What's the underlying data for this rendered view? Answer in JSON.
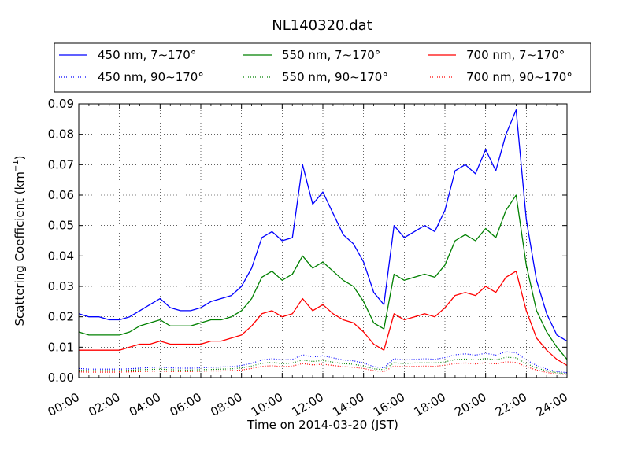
{
  "chart_data": {
    "type": "line",
    "title": "NL140320.dat",
    "xlabel": "Time on 2014-03-20 (JST)",
    "ylabel_main": "Scattering Coefficient (km",
    "ylabel_sup": "−1",
    "ylabel_tail": ")",
    "xlim_hours": [
      0,
      24
    ],
    "ylim": [
      0,
      0.09
    ],
    "grid": true,
    "legend_placement": "top, above axes, 3 columns",
    "xticks": [
      {
        "hour": 0,
        "label": "00:00"
      },
      {
        "hour": 2,
        "label": "02:00"
      },
      {
        "hour": 4,
        "label": "04:00"
      },
      {
        "hour": 6,
        "label": "06:00"
      },
      {
        "hour": 8,
        "label": "08:00"
      },
      {
        "hour": 10,
        "label": "10:00"
      },
      {
        "hour": 12,
        "label": "12:00"
      },
      {
        "hour": 14,
        "label": "14:00"
      },
      {
        "hour": 16,
        "label": "16:00"
      },
      {
        "hour": 18,
        "label": "18:00"
      },
      {
        "hour": 20,
        "label": "20:00"
      },
      {
        "hour": 22,
        "label": "22:00"
      },
      {
        "hour": 24,
        "label": "24:00"
      }
    ],
    "yticks": [
      {
        "value": 0.0,
        "label": "0.00"
      },
      {
        "value": 0.01,
        "label": "0.01"
      },
      {
        "value": 0.02,
        "label": "0.02"
      },
      {
        "value": 0.03,
        "label": "0.03"
      },
      {
        "value": 0.04,
        "label": "0.04"
      },
      {
        "value": 0.05,
        "label": "0.05"
      },
      {
        "value": 0.06,
        "label": "0.06"
      },
      {
        "value": 0.07,
        "label": "0.07"
      },
      {
        "value": 0.08,
        "label": "0.08"
      },
      {
        "value": 0.09,
        "label": "0.09"
      }
    ],
    "x_hours": [
      0,
      0.5,
      1,
      1.5,
      2,
      2.5,
      3,
      3.5,
      4,
      4.5,
      5,
      5.5,
      6,
      6.5,
      7,
      7.5,
      8,
      8.5,
      9,
      9.5,
      10,
      10.5,
      11,
      11.5,
      12,
      12.5,
      13,
      13.5,
      14,
      14.5,
      15,
      15.5,
      16,
      16.5,
      17,
      17.5,
      18,
      18.5,
      19,
      19.5,
      20,
      20.5,
      21,
      21.5,
      22,
      22.5,
      23,
      23.5,
      24
    ],
    "series": [
      {
        "name": "450 nm, 7∼170°",
        "color": "#0000ff",
        "style": "solid",
        "values": [
          0.021,
          0.02,
          0.02,
          0.019,
          0.019,
          0.02,
          0.022,
          0.024,
          0.026,
          0.023,
          0.022,
          0.022,
          0.023,
          0.025,
          0.026,
          0.027,
          0.03,
          0.036,
          0.046,
          0.048,
          0.045,
          0.046,
          0.07,
          0.057,
          0.061,
          0.054,
          0.047,
          0.044,
          0.038,
          0.028,
          0.024,
          0.05,
          0.046,
          0.048,
          0.05,
          0.048,
          0.055,
          0.068,
          0.07,
          0.067,
          0.075,
          0.068,
          0.08,
          0.088,
          0.052,
          0.032,
          0.021,
          0.014,
          0.012
        ]
      },
      {
        "name": "550 nm, 7∼170°",
        "color": "#008000",
        "style": "solid",
        "values": [
          0.015,
          0.014,
          0.014,
          0.014,
          0.014,
          0.015,
          0.017,
          0.018,
          0.019,
          0.017,
          0.017,
          0.017,
          0.018,
          0.019,
          0.019,
          0.02,
          0.022,
          0.026,
          0.033,
          0.035,
          0.032,
          0.034,
          0.04,
          0.036,
          0.038,
          0.035,
          0.032,
          0.03,
          0.025,
          0.018,
          0.016,
          0.034,
          0.032,
          0.033,
          0.034,
          0.033,
          0.037,
          0.045,
          0.047,
          0.045,
          0.049,
          0.046,
          0.055,
          0.06,
          0.037,
          0.022,
          0.015,
          0.01,
          0.006
        ]
      },
      {
        "name": "700 nm, 7∼170°",
        "color": "#ff0000",
        "style": "solid",
        "values": [
          0.009,
          0.009,
          0.009,
          0.009,
          0.009,
          0.01,
          0.011,
          0.011,
          0.012,
          0.011,
          0.011,
          0.011,
          0.011,
          0.012,
          0.012,
          0.013,
          0.014,
          0.017,
          0.021,
          0.022,
          0.02,
          0.021,
          0.026,
          0.022,
          0.024,
          0.021,
          0.019,
          0.018,
          0.015,
          0.011,
          0.009,
          0.021,
          0.019,
          0.02,
          0.021,
          0.02,
          0.023,
          0.027,
          0.028,
          0.027,
          0.03,
          0.028,
          0.033,
          0.035,
          0.022,
          0.013,
          0.009,
          0.006,
          0.004
        ]
      },
      {
        "name": "450 nm, 90∼170°",
        "color": "#0000ff",
        "style": "dotted",
        "values": [
          0.003,
          0.0028,
          0.0028,
          0.0028,
          0.0028,
          0.0029,
          0.0031,
          0.0033,
          0.0035,
          0.0032,
          0.0031,
          0.0031,
          0.0032,
          0.0034,
          0.0035,
          0.0036,
          0.004,
          0.0047,
          0.0058,
          0.0062,
          0.0058,
          0.006,
          0.0075,
          0.0068,
          0.0072,
          0.0065,
          0.0058,
          0.0055,
          0.0048,
          0.0036,
          0.0032,
          0.0062,
          0.0058,
          0.006,
          0.0062,
          0.006,
          0.0066,
          0.0075,
          0.0078,
          0.0074,
          0.008,
          0.0074,
          0.0085,
          0.0082,
          0.0058,
          0.004,
          0.0028,
          0.002,
          0.0016
        ]
      },
      {
        "name": "550 nm, 90∼170°",
        "color": "#008000",
        "style": "dotted",
        "values": [
          0.0024,
          0.0023,
          0.0023,
          0.0023,
          0.0023,
          0.0024,
          0.0026,
          0.0027,
          0.0028,
          0.0026,
          0.0025,
          0.0025,
          0.0026,
          0.0027,
          0.0028,
          0.0029,
          0.0032,
          0.0038,
          0.0047,
          0.005,
          0.0046,
          0.0048,
          0.0058,
          0.0053,
          0.0056,
          0.0051,
          0.0046,
          0.0044,
          0.0038,
          0.0029,
          0.0026,
          0.0049,
          0.0046,
          0.0048,
          0.0049,
          0.0048,
          0.0052,
          0.0059,
          0.0061,
          0.0058,
          0.0063,
          0.0058,
          0.0067,
          0.0065,
          0.0046,
          0.0032,
          0.0022,
          0.0016,
          0.0013
        ]
      },
      {
        "name": "700 nm, 90∼170°",
        "color": "#ff0000",
        "style": "dotted",
        "values": [
          0.0019,
          0.0018,
          0.0018,
          0.0018,
          0.0018,
          0.0019,
          0.002,
          0.0021,
          0.0022,
          0.002,
          0.002,
          0.002,
          0.0021,
          0.0022,
          0.0022,
          0.0023,
          0.0025,
          0.003,
          0.0037,
          0.0039,
          0.0036,
          0.0038,
          0.0046,
          0.0042,
          0.0044,
          0.004,
          0.0036,
          0.0034,
          0.003,
          0.0023,
          0.002,
          0.0038,
          0.0036,
          0.0037,
          0.0038,
          0.0037,
          0.0041,
          0.0046,
          0.0048,
          0.0045,
          0.0049,
          0.0045,
          0.0052,
          0.005,
          0.0036,
          0.0025,
          0.0017,
          0.0012,
          0.001
        ]
      }
    ],
    "legend_order": [
      0,
      1,
      2,
      3,
      4,
      5
    ]
  }
}
